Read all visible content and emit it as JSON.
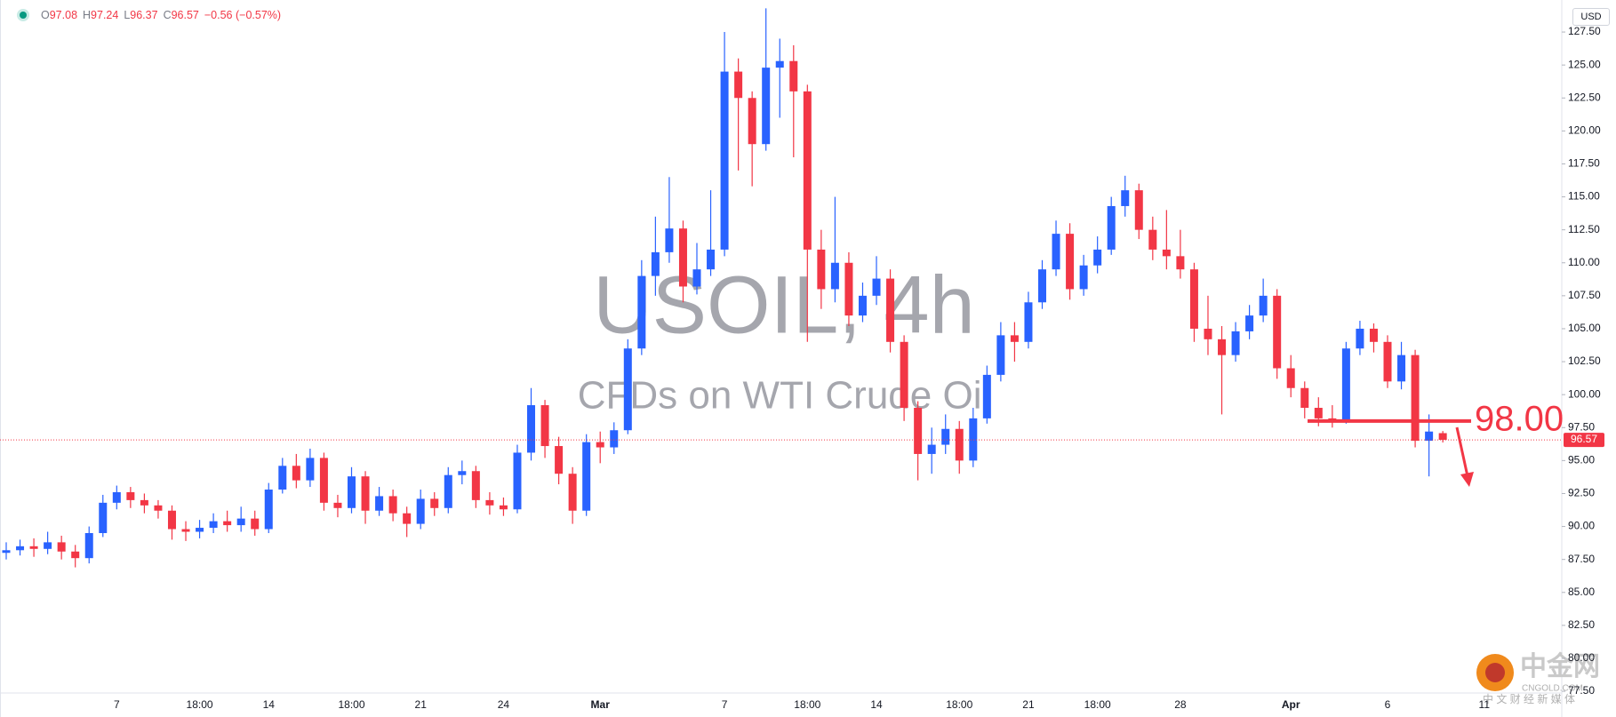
{
  "chart_data": {
    "type": "candlestick",
    "title": "USOIL, 4h",
    "subtitle": "CFDs on WTI Crude Oil",
    "currency": "USD",
    "ohlc_labels": [
      "O",
      "H",
      "L",
      "C"
    ],
    "change_label": "−0.56 (−0.57%)",
    "up_color": "#2962ff",
    "down_color": "#f23645",
    "grid": false,
    "categories": [
      null,
      null,
      null,
      null,
      null,
      null,
      null,
      null,
      "7",
      null,
      null,
      null,
      null,
      null,
      "18:00",
      null,
      null,
      null,
      null,
      "14",
      null,
      null,
      null,
      null,
      null,
      "18:00",
      null,
      null,
      null,
      null,
      "21",
      null,
      null,
      null,
      null,
      null,
      "24",
      null,
      null,
      null,
      null,
      null,
      null,
      "Mar",
      null,
      null,
      null,
      null,
      null,
      null,
      null,
      null,
      "7",
      null,
      null,
      null,
      null,
      null,
      "18:00",
      null,
      null,
      null,
      null,
      "14",
      null,
      null,
      null,
      null,
      null,
      "18:00",
      null,
      null,
      null,
      null,
      "21",
      null,
      null,
      null,
      null,
      "18:00",
      null,
      null,
      null,
      null,
      null,
      "28",
      null,
      null,
      null,
      null,
      null,
      null,
      null,
      "Apr",
      null,
      null,
      null,
      null,
      null,
      null,
      "6",
      null,
      null,
      null,
      null,
      null,
      null,
      "11"
    ],
    "open": [
      88.0,
      88.2,
      88.5,
      88.3,
      88.8,
      88.1,
      87.6,
      89.5,
      91.8,
      92.6,
      92.0,
      91.6,
      91.2,
      89.8,
      89.6,
      89.9,
      90.4,
      90.1,
      90.6,
      89.8,
      92.8,
      94.6,
      93.5,
      95.2,
      91.8,
      91.4,
      93.8,
      91.2,
      92.3,
      91.0,
      90.2,
      92.1,
      91.4,
      93.9,
      94.2,
      92.0,
      91.6,
      91.3,
      95.6,
      99.2,
      96.1,
      94.0,
      91.2,
      96.4,
      96.0,
      97.3,
      103.5,
      109.0,
      110.8,
      112.6,
      108.2,
      109.5,
      111.0,
      124.5,
      122.5,
      119.0,
      124.8,
      125.3,
      123.0,
      111.0,
      108.0,
      110.0,
      106.0,
      107.5,
      108.8,
      104.0,
      99.0,
      95.5,
      96.2,
      97.4,
      95.0,
      98.2,
      101.5,
      104.5,
      104.0,
      107.0,
      109.5,
      112.2,
      108.0,
      109.8,
      111.0,
      114.3,
      115.5,
      112.5,
      111.0,
      110.5,
      109.5,
      105.0,
      104.2,
      103.0,
      104.8,
      106.0,
      107.5,
      102.0,
      100.5,
      99.0,
      98.2,
      98.0,
      103.5,
      105.0,
      104.0,
      101.0,
      103.0,
      96.5,
      97.08,
      null,
      null,
      null
    ],
    "high": [
      88.8,
      89.0,
      89.1,
      89.6,
      89.3,
      88.6,
      90.0,
      92.4,
      93.1,
      93.0,
      92.5,
      92.0,
      91.6,
      90.4,
      90.5,
      91.0,
      91.2,
      91.5,
      91.2,
      93.3,
      95.2,
      95.5,
      95.9,
      95.6,
      92.4,
      94.5,
      94.2,
      93.0,
      92.8,
      91.5,
      92.8,
      92.6,
      94.5,
      95.0,
      94.6,
      92.6,
      92.2,
      96.2,
      100.5,
      99.6,
      96.8,
      94.5,
      97.0,
      97.2,
      97.9,
      104.2,
      110.2,
      113.5,
      116.5,
      113.2,
      111.5,
      115.5,
      127.5,
      125.5,
      123.0,
      129.3,
      127.0,
      126.5,
      123.5,
      112.5,
      115.0,
      110.8,
      108.5,
      110.5,
      109.5,
      104.5,
      99.5,
      97.5,
      98.5,
      98.0,
      99.0,
      102.2,
      105.5,
      105.5,
      107.8,
      110.2,
      113.2,
      113.0,
      110.6,
      112.0,
      115.0,
      116.6,
      116.0,
      113.5,
      114.0,
      112.5,
      110.0,
      107.5,
      105.2,
      105.5,
      106.8,
      108.8,
      108.0,
      103.0,
      101.0,
      99.8,
      99.2,
      104.0,
      105.6,
      105.4,
      104.5,
      104.0,
      103.4,
      98.5,
      97.24,
      null,
      null,
      null
    ],
    "low": [
      87.5,
      87.8,
      87.7,
      87.9,
      87.5,
      86.9,
      87.2,
      89.2,
      91.3,
      91.4,
      91.0,
      90.6,
      89.0,
      88.9,
      89.1,
      89.5,
      89.6,
      89.6,
      89.3,
      89.5,
      92.5,
      92.9,
      93.0,
      91.2,
      90.7,
      91.0,
      90.2,
      90.8,
      90.4,
      89.2,
      89.8,
      90.8,
      91.0,
      93.2,
      91.4,
      90.9,
      90.8,
      91.0,
      95.0,
      95.2,
      93.2,
      90.2,
      90.8,
      94.8,
      95.5,
      97.0,
      103.0,
      107.5,
      110.0,
      107.0,
      107.6,
      109.0,
      110.5,
      117.0,
      115.8,
      118.5,
      121.0,
      118.0,
      104.0,
      106.5,
      107.0,
      105.2,
      105.5,
      106.8,
      103.2,
      98.0,
      93.5,
      94.0,
      95.5,
      94.0,
      94.5,
      97.8,
      101.0,
      102.5,
      103.5,
      106.5,
      109.0,
      107.2,
      107.5,
      109.2,
      110.6,
      113.5,
      111.8,
      110.2,
      109.5,
      108.8,
      104.0,
      103.0,
      98.5,
      102.5,
      104.2,
      105.5,
      101.2,
      99.8,
      98.2,
      97.6,
      97.5,
      97.8,
      103.0,
      103.2,
      100.5,
      100.4,
      96.0,
      93.8,
      96.37,
      null,
      null,
      null
    ],
    "close": [
      88.2,
      88.5,
      88.3,
      88.8,
      88.1,
      87.6,
      89.5,
      91.8,
      92.6,
      92.0,
      91.6,
      91.2,
      89.8,
      89.6,
      89.9,
      90.4,
      90.1,
      90.6,
      89.8,
      92.8,
      94.6,
      93.5,
      95.2,
      91.8,
      91.4,
      93.8,
      91.2,
      92.3,
      91.0,
      90.2,
      92.1,
      91.4,
      93.9,
      94.2,
      92.0,
      91.6,
      91.3,
      95.6,
      99.2,
      96.1,
      94.0,
      91.2,
      96.4,
      96.0,
      97.3,
      103.5,
      109.0,
      110.8,
      112.6,
      108.2,
      109.5,
      111.0,
      124.5,
      122.5,
      119.0,
      124.8,
      125.3,
      123.0,
      111.0,
      108.0,
      110.0,
      106.0,
      107.5,
      108.8,
      104.0,
      99.0,
      95.5,
      96.2,
      97.4,
      95.0,
      98.2,
      101.5,
      104.5,
      104.0,
      107.0,
      109.5,
      112.2,
      108.0,
      109.8,
      111.0,
      114.3,
      115.5,
      112.5,
      111.0,
      110.5,
      109.5,
      105.0,
      104.2,
      103.0,
      104.8,
      106.0,
      107.5,
      102.0,
      100.5,
      99.0,
      98.2,
      98.0,
      103.5,
      105.0,
      104.0,
      101.0,
      103.0,
      96.5,
      97.2,
      96.57,
      null,
      null,
      null
    ],
    "ylim": [
      77.37,
      129.93
    ],
    "yticks": [
      {
        "value": 77.5,
        "label": "77.50"
      },
      {
        "value": 80,
        "label": "80.00"
      },
      {
        "value": 82.5,
        "label": "82.50"
      },
      {
        "value": 85,
        "label": "85.00"
      },
      {
        "value": 87.5,
        "label": "87.50"
      },
      {
        "value": 90,
        "label": "90.00"
      },
      {
        "value": 92.5,
        "label": "92.50"
      },
      {
        "value": 95,
        "label": "95.00"
      },
      {
        "value": 97.5,
        "label": "97.50"
      },
      {
        "value": 100,
        "label": "100.00"
      },
      {
        "value": 102.5,
        "label": "102.50"
      },
      {
        "value": 105,
        "label": "105.00"
      },
      {
        "value": 107.5,
        "label": "107.50"
      },
      {
        "value": 110,
        "label": "110.00"
      },
      {
        "value": 112.5,
        "label": "112.50"
      },
      {
        "value": 115,
        "label": "115.00"
      },
      {
        "value": 117.5,
        "label": "117.50"
      },
      {
        "value": 120,
        "label": "120.00"
      },
      {
        "value": 122.5,
        "label": "122.50"
      },
      {
        "value": 125,
        "label": "125.00"
      },
      {
        "value": 127.5,
        "label": "127.50"
      }
    ],
    "annotations": [
      {
        "value": 98,
        "label": "98.00"
      }
    ],
    "logo": {
      "name": "中金网",
      "site": "CNGOLD.COM",
      "slogan": "中 文 财 经 新 媒 体"
    }
  }
}
